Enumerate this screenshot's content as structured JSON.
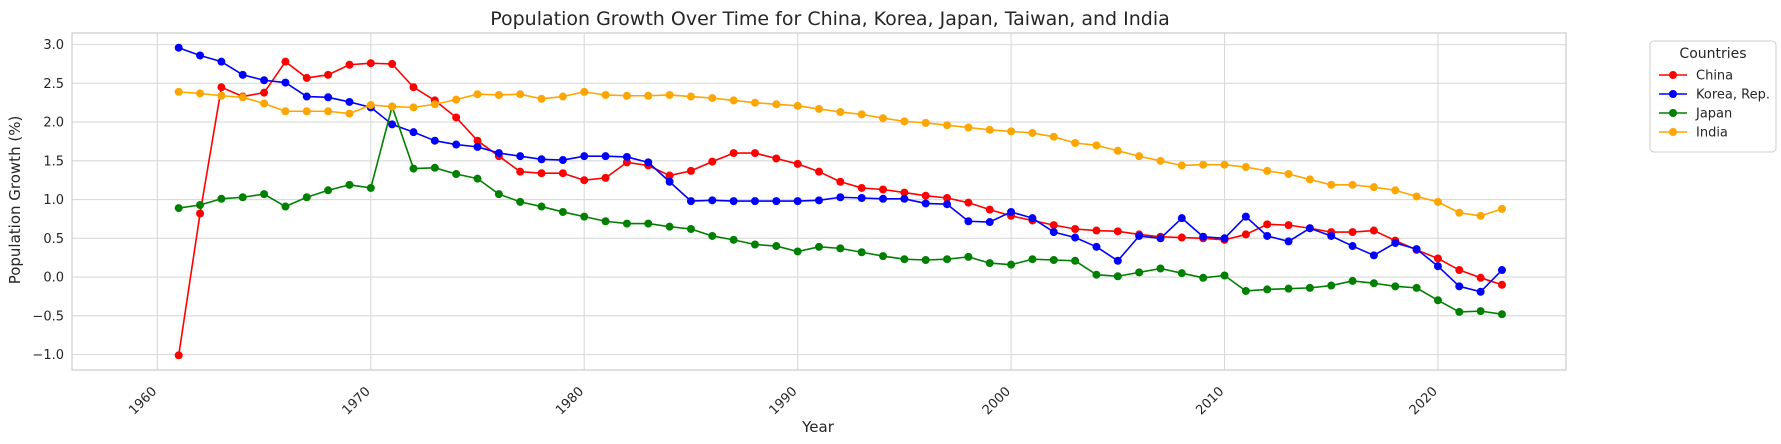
{
  "chart_data": {
    "type": "line",
    "title": "Population Growth Over Time for China, Korea, Japan, Taiwan, and India",
    "xlabel": "Year",
    "ylabel": "Population Growth (%)",
    "xlim": [
      1956,
      2026
    ],
    "ylim": [
      -1.2,
      3.15
    ],
    "x_ticks": [
      1960,
      1970,
      1980,
      1990,
      2000,
      2010,
      2020
    ],
    "y_ticks": [
      -1.0,
      -0.5,
      0.0,
      0.5,
      1.0,
      1.5,
      2.0,
      2.5,
      3.0
    ],
    "x_tick_labels": [
      "1960",
      "1970",
      "1980",
      "1990",
      "2000",
      "2010",
      "2020"
    ],
    "y_tick_labels": [
      "−1.0",
      "−0.5",
      "0.0",
      "0.5",
      "1.0",
      "1.5",
      "2.0",
      "2.5",
      "3.0"
    ],
    "grid": true,
    "legend_title": "Countries",
    "legend_position": "outside-top-right",
    "x": [
      1961,
      1962,
      1963,
      1964,
      1965,
      1966,
      1967,
      1968,
      1969,
      1970,
      1971,
      1972,
      1973,
      1974,
      1975,
      1976,
      1977,
      1978,
      1979,
      1980,
      1981,
      1982,
      1983,
      1984,
      1985,
      1986,
      1987,
      1988,
      1989,
      1990,
      1991,
      1992,
      1993,
      1994,
      1995,
      1996,
      1997,
      1998,
      1999,
      2000,
      2001,
      2002,
      2003,
      2004,
      2005,
      2006,
      2007,
      2008,
      2009,
      2010,
      2011,
      2012,
      2013,
      2014,
      2015,
      2016,
      2017,
      2018,
      2019,
      2020,
      2021,
      2022,
      2023
    ],
    "series": [
      {
        "name": "China",
        "color": "#ff0000",
        "values": [
          -1.01,
          0.82,
          2.45,
          2.33,
          2.38,
          2.78,
          2.57,
          2.61,
          2.74,
          2.76,
          2.75,
          2.45,
          2.28,
          2.06,
          1.76,
          1.56,
          1.36,
          1.34,
          1.34,
          1.25,
          1.28,
          1.48,
          1.44,
          1.31,
          1.37,
          1.49,
          1.6,
          1.6,
          1.53,
          1.46,
          1.36,
          1.23,
          1.15,
          1.13,
          1.09,
          1.05,
          1.02,
          0.96,
          0.87,
          0.79,
          0.73,
          0.67,
          0.62,
          0.6,
          0.59,
          0.55,
          0.52,
          0.51,
          0.5,
          0.48,
          0.55,
          0.68,
          0.67,
          0.63,
          0.58,
          0.58,
          0.6,
          0.47,
          0.35,
          0.24,
          0.09,
          -0.01,
          -0.1
        ]
      },
      {
        "name": "Korea, Rep.",
        "color": "#0000ff",
        "values": [
          2.96,
          2.86,
          2.78,
          2.61,
          2.54,
          2.51,
          2.33,
          2.32,
          2.26,
          2.19,
          1.97,
          1.87,
          1.76,
          1.71,
          1.68,
          1.6,
          1.56,
          1.52,
          1.51,
          1.56,
          1.56,
          1.55,
          1.48,
          1.23,
          0.98,
          0.99,
          0.98,
          0.98,
          0.98,
          0.98,
          0.99,
          1.03,
          1.02,
          1.01,
          1.01,
          0.95,
          0.94,
          0.72,
          0.71,
          0.84,
          0.76,
          0.58,
          0.51,
          0.39,
          0.21,
          0.53,
          0.5,
          0.76,
          0.52,
          0.5,
          0.78,
          0.53,
          0.46,
          0.63,
          0.53,
          0.4,
          0.28,
          0.44,
          0.36,
          0.14,
          -0.12,
          -0.19,
          0.09
        ]
      },
      {
        "name": "Japan",
        "color": "#008000",
        "values": [
          0.89,
          0.93,
          1.01,
          1.03,
          1.07,
          0.91,
          1.03,
          1.12,
          1.19,
          1.15,
          2.2,
          1.4,
          1.41,
          1.33,
          1.27,
          1.07,
          0.97,
          0.91,
          0.84,
          0.78,
          0.72,
          0.69,
          0.69,
          0.65,
          0.62,
          0.53,
          0.48,
          0.42,
          0.4,
          0.33,
          0.39,
          0.37,
          0.32,
          0.27,
          0.23,
          0.22,
          0.23,
          0.26,
          0.18,
          0.16,
          0.23,
          0.22,
          0.21,
          0.03,
          0.01,
          0.06,
          0.11,
          0.05,
          -0.01,
          0.02,
          -0.18,
          -0.16,
          -0.15,
          -0.14,
          -0.11,
          -0.05,
          -0.08,
          -0.12,
          -0.14,
          -0.3,
          -0.45,
          -0.44,
          -0.48
        ]
      },
      {
        "name": "India",
        "color": "#ffa500",
        "values": [
          2.39,
          2.37,
          2.34,
          2.32,
          2.24,
          2.14,
          2.14,
          2.14,
          2.11,
          2.22,
          2.2,
          2.19,
          2.23,
          2.29,
          2.36,
          2.35,
          2.36,
          2.3,
          2.33,
          2.39,
          2.35,
          2.34,
          2.34,
          2.35,
          2.33,
          2.31,
          2.28,
          2.25,
          2.23,
          2.21,
          2.17,
          2.13,
          2.1,
          2.05,
          2.01,
          1.99,
          1.96,
          1.93,
          1.9,
          1.88,
          1.86,
          1.81,
          1.73,
          1.7,
          1.63,
          1.56,
          1.5,
          1.44,
          1.45,
          1.45,
          1.42,
          1.37,
          1.33,
          1.26,
          1.19,
          1.19,
          1.16,
          1.12,
          1.04,
          0.97,
          0.83,
          0.79,
          0.88
        ]
      }
    ]
  }
}
